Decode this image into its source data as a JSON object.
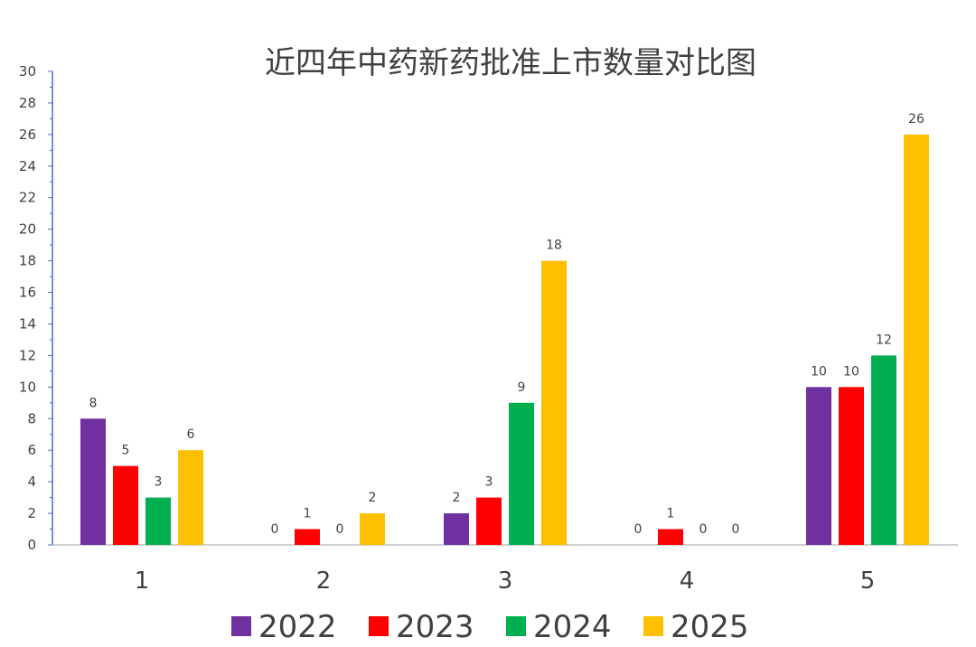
{
  "chart_data": {
    "type": "bar",
    "title": "近四年中药新药批准上市数量对比图",
    "xlabel": "",
    "ylabel": "",
    "categories": [
      "1",
      "2",
      "3",
      "4",
      "5"
    ],
    "ylim": [
      0,
      30
    ],
    "yticks": [
      0,
      2,
      4,
      6,
      8,
      10,
      12,
      14,
      16,
      18,
      20,
      22,
      24,
      26,
      28,
      30
    ],
    "grid": false,
    "legend_position": "bottom",
    "series": [
      {
        "name": "2022",
        "color": "#7030A0",
        "values": [
          8,
          0,
          2,
          0,
          10
        ]
      },
      {
        "name": "2023",
        "color": "#FF0000",
        "values": [
          5,
          1,
          3,
          1,
          10
        ]
      },
      {
        "name": "2024",
        "color": "#00B050",
        "values": [
          3,
          0,
          9,
          0,
          12
        ]
      },
      {
        "name": "2025",
        "color": "#FFC000",
        "values": [
          6,
          2,
          18,
          0,
          26
        ]
      }
    ]
  }
}
